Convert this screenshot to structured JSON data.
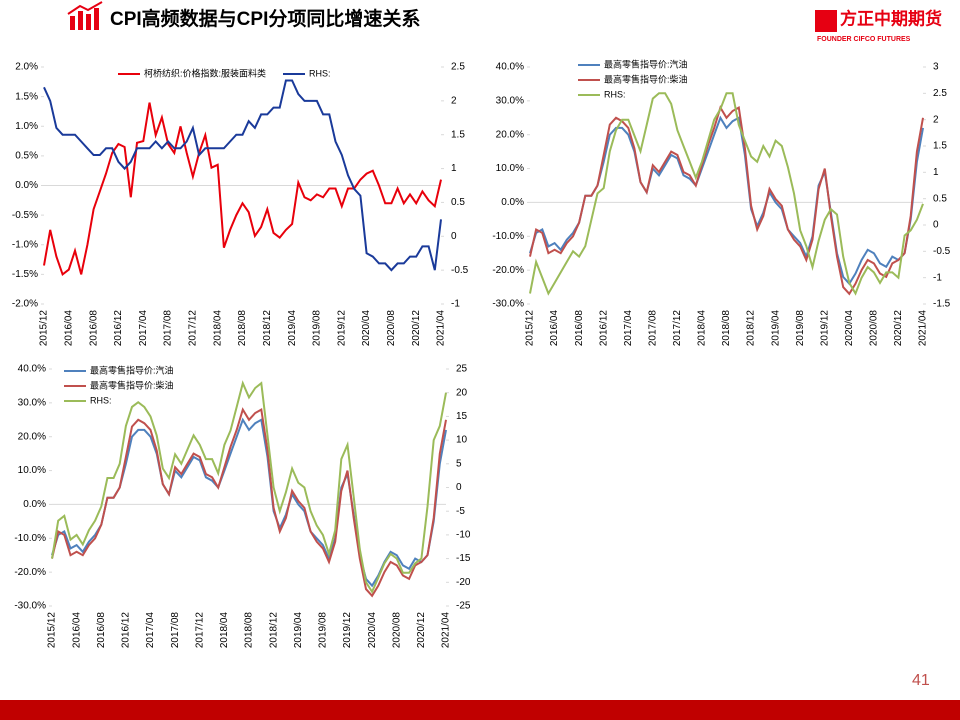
{
  "title": "CPI高频数据与CPI分项同比增速关系",
  "logo": {
    "name": "方正中期期货",
    "english": "FOUNDER CIFCO FUTURES"
  },
  "page_number": "41",
  "chart_data": [
    {
      "type": "line",
      "categories": [
        "2015/12",
        null,
        null,
        null,
        "2016/04",
        null,
        null,
        null,
        "2016/08",
        null,
        null,
        null,
        "2016/12",
        null,
        null,
        null,
        "2017/04",
        null,
        null,
        null,
        "2017/08",
        null,
        null,
        null,
        "2017/12",
        null,
        null,
        null,
        "2018/04",
        null,
        null,
        null,
        "2018/08",
        null,
        null,
        null,
        "2018/12",
        null,
        null,
        null,
        "2019/04",
        null,
        null,
        null,
        "2019/08",
        null,
        null,
        null,
        "2019/12",
        null,
        null,
        null,
        "2020/04",
        null,
        null,
        null,
        "2020/08",
        null,
        null,
        null,
        "2020/12",
        null,
        null,
        null,
        "2021/04"
      ],
      "ylim": [
        -2,
        2
      ],
      "yticks": [
        {
          "value": 2,
          "label": "2.0%"
        },
        {
          "value": 1.5,
          "label": "1.5%"
        },
        {
          "value": 1,
          "label": "1.0%"
        },
        {
          "value": 0.5,
          "label": "0.5%"
        },
        {
          "value": 0,
          "label": "0.0%"
        },
        {
          "value": -0.5,
          "label": "-0.5%"
        },
        {
          "value": -1,
          "label": "-1.0%"
        },
        {
          "value": -1.5,
          "label": "-1.5%"
        },
        {
          "value": -2,
          "label": "-2.0%"
        }
      ],
      "y2lim": [
        -1,
        2.5
      ],
      "y2ticks": [
        2.5,
        2,
        1.5,
        1,
        0.5,
        0,
        -0.5,
        -1
      ],
      "series": [
        {
          "name": "柯桥纺织:价格指数:服装面料类",
          "color": "#e8000b",
          "values": [
            -1.35,
            -0.75,
            -1.2,
            -1.5,
            -1.42,
            -1.1,
            -1.5,
            -1.0,
            -0.4,
            -0.1,
            0.2,
            0.55,
            0.7,
            0.65,
            -0.2,
            0.72,
            0.75,
            1.4,
            0.85,
            1.15,
            0.7,
            0.55,
            1.0,
            0.55,
            0.15,
            0.55,
            0.85,
            0.3,
            0.35,
            -1.05,
            -0.75,
            -0.5,
            -0.3,
            -0.45,
            -0.85,
            -0.7,
            -0.4,
            -0.8,
            -0.88,
            -0.75,
            -0.65,
            0.05,
            -0.2,
            -0.25,
            -0.15,
            -0.2,
            -0.05,
            -0.05,
            -0.35,
            -0.05,
            -0.05,
            0.1,
            0.2,
            0.25,
            0.0,
            -0.3,
            -0.3,
            -0.05,
            -0.3,
            -0.15,
            -0.3,
            -0.1,
            -0.25,
            -0.35,
            0.1
          ]
        },
        {
          "name": "RHS:",
          "color": "#1a3a9a",
          "axis": "y2",
          "values": [
            2.2,
            2.0,
            1.6,
            1.5,
            1.5,
            1.5,
            1.4,
            1.3,
            1.2,
            1.2,
            1.3,
            1.3,
            1.1,
            1.0,
            1.1,
            1.3,
            1.3,
            1.3,
            1.4,
            1.3,
            1.4,
            1.3,
            1.3,
            1.4,
            1.6,
            1.2,
            1.3,
            1.3,
            1.3,
            1.3,
            1.4,
            1.5,
            1.5,
            1.7,
            1.6,
            1.8,
            1.8,
            1.9,
            1.9,
            2.3,
            2.3,
            2.1,
            2.0,
            2.0,
            2.0,
            1.8,
            1.8,
            1.4,
            1.2,
            0.9,
            0.7,
            0.6,
            -0.25,
            -0.3,
            -0.4,
            -0.4,
            -0.5,
            -0.4,
            -0.4,
            -0.3,
            -0.3,
            -0.15,
            -0.15,
            -0.5,
            0.25
          ]
        }
      ]
    },
    {
      "type": "line",
      "categories": [
        "2015/12",
        null,
        null,
        null,
        "2016/04",
        null,
        null,
        null,
        "2016/08",
        null,
        null,
        null,
        "2016/12",
        null,
        null,
        null,
        "2017/04",
        null,
        null,
        null,
        "2017/08",
        null,
        null,
        null,
        "2017/12",
        null,
        null,
        null,
        "2018/04",
        null,
        null,
        null,
        "2018/08",
        null,
        null,
        null,
        "2018/12",
        null,
        null,
        null,
        "2019/04",
        null,
        null,
        null,
        "2019/08",
        null,
        null,
        null,
        "2019/12",
        null,
        null,
        null,
        "2020/04",
        null,
        null,
        null,
        "2020/08",
        null,
        null,
        null,
        "2020/12",
        null,
        null,
        null,
        "2021/04"
      ],
      "ylim": [
        -30,
        40
      ],
      "yticks": [
        {
          "value": 40,
          "label": "40.0%"
        },
        {
          "value": 30,
          "label": "30.0%"
        },
        {
          "value": 20,
          "label": "20.0%"
        },
        {
          "value": 10,
          "label": "10.0%"
        },
        {
          "value": 0,
          "label": "0.0%"
        },
        {
          "value": -10,
          "label": "-10.0%"
        },
        {
          "value": -20,
          "label": "-20.0%"
        },
        {
          "value": -30,
          "label": "-30.0%"
        }
      ],
      "y2lim": [
        -1.5,
        3
      ],
      "y2ticks": [
        3,
        2.5,
        2,
        1.5,
        1,
        0.5,
        0,
        -0.5,
        -1,
        -1.5
      ],
      "series": [
        {
          "name": "最高零售指导价:汽油",
          "color": "#4f81bd",
          "values": [
            -15,
            -9,
            -8,
            -13,
            -12,
            -14,
            -11,
            -9,
            -6,
            2,
            2,
            5,
            12,
            20,
            22,
            22,
            20,
            15,
            6,
            3,
            10,
            8,
            11,
            14,
            13,
            8,
            7,
            5,
            10,
            15,
            20,
            25,
            22,
            24,
            25,
            14,
            -2,
            -7,
            -3,
            3,
            0,
            -2,
            -8,
            -10,
            -12,
            -16,
            -10,
            5,
            9,
            -3,
            -15,
            -22,
            -24,
            -21,
            -17,
            -14,
            -15,
            -18,
            -19,
            -16,
            -17,
            -15,
            -5,
            12,
            22
          ]
        },
        {
          "name": "最高零售指导价:柴油",
          "color": "#c0504d",
          "values": [
            -16,
            -8,
            -9,
            -15,
            -14,
            -15,
            -12,
            -10,
            -6,
            2,
            2,
            5,
            14,
            23,
            25,
            24,
            22,
            16,
            6,
            3,
            11,
            9,
            12,
            15,
            14,
            9,
            8,
            5,
            11,
            17,
            22,
            28,
            25,
            27,
            28,
            16,
            -1,
            -8,
            -4,
            4,
            1,
            -1,
            -8,
            -11,
            -13,
            -17,
            -11,
            4,
            10,
            -4,
            -16,
            -25,
            -27,
            -24,
            -20,
            -17,
            -18,
            -21,
            -22,
            -18,
            -17,
            -15,
            -4,
            15,
            25
          ]
        },
        {
          "name": "RHS:",
          "color": "#9bbb59",
          "axis": "y2",
          "values": [
            -1.3,
            -0.7,
            -1.0,
            -1.3,
            -1.1,
            -0.9,
            -0.7,
            -0.5,
            -0.6,
            -0.4,
            0.1,
            0.6,
            0.7,
            1.4,
            1.8,
            2.0,
            2.0,
            1.7,
            1.4,
            1.9,
            2.4,
            2.5,
            2.5,
            2.3,
            1.8,
            1.5,
            1.2,
            0.9,
            1.2,
            1.6,
            2.0,
            2.2,
            2.5,
            2.5,
            1.9,
            1.6,
            1.3,
            1.2,
            1.5,
            1.3,
            1.6,
            1.5,
            1.1,
            0.6,
            -0.1,
            -0.4,
            -0.8,
            -0.3,
            0.1,
            0.3,
            0.2,
            -0.6,
            -1.1,
            -1.3,
            -1.0,
            -0.8,
            -0.9,
            -1.1,
            -0.9,
            -0.9,
            -1.0,
            -0.2,
            -0.1,
            0.1,
            0.4
          ]
        }
      ]
    },
    {
      "type": "line",
      "categories": [
        "2015/12",
        null,
        null,
        null,
        "2016/04",
        null,
        null,
        null,
        "2016/08",
        null,
        null,
        null,
        "2016/12",
        null,
        null,
        null,
        "2017/04",
        null,
        null,
        null,
        "2017/08",
        null,
        null,
        null,
        "2017/12",
        null,
        null,
        null,
        "2018/04",
        null,
        null,
        null,
        "2018/08",
        null,
        null,
        null,
        "2018/12",
        null,
        null,
        null,
        "2019/04",
        null,
        null,
        null,
        "2019/08",
        null,
        null,
        null,
        "2019/12",
        null,
        null,
        null,
        "2020/04",
        null,
        null,
        null,
        "2020/08",
        null,
        null,
        null,
        "2020/12",
        null,
        null,
        null,
        "2021/04"
      ],
      "ylim": [
        -30,
        40
      ],
      "yticks": [
        {
          "value": 40,
          "label": "40.0%"
        },
        {
          "value": 30,
          "label": "30.0%"
        },
        {
          "value": 20,
          "label": "20.0%"
        },
        {
          "value": 10,
          "label": "10.0%"
        },
        {
          "value": 0,
          "label": "0.0%"
        },
        {
          "value": -10,
          "label": "-10.0%"
        },
        {
          "value": -20,
          "label": "-20.0%"
        },
        {
          "value": -30,
          "label": "-30.0%"
        }
      ],
      "y2lim": [
        -25,
        25
      ],
      "y2ticks": [
        25,
        20,
        15,
        10,
        5,
        0,
        -5,
        -10,
        -15,
        -20,
        -25
      ],
      "series": [
        {
          "name": "最高零售指导价:汽油",
          "color": "#4f81bd",
          "values": [
            -15,
            -9,
            -8,
            -13,
            -12,
            -14,
            -11,
            -9,
            -6,
            2,
            2,
            5,
            12,
            20,
            22,
            22,
            20,
            15,
            6,
            3,
            10,
            8,
            11,
            14,
            13,
            8,
            7,
            5,
            10,
            15,
            20,
            25,
            22,
            24,
            25,
            14,
            -2,
            -7,
            -3,
            3,
            0,
            -2,
            -8,
            -10,
            -12,
            -16,
            -10,
            5,
            9,
            -3,
            -15,
            -22,
            -24,
            -21,
            -17,
            -14,
            -15,
            -18,
            -19,
            -16,
            -17,
            -15,
            -5,
            12,
            22
          ]
        },
        {
          "name": "最高零售指导价:柴油",
          "color": "#c0504d",
          "values": [
            -16,
            -8,
            -9,
            -15,
            -14,
            -15,
            -12,
            -10,
            -6,
            2,
            2,
            5,
            14,
            23,
            25,
            24,
            22,
            16,
            6,
            3,
            11,
            9,
            12,
            15,
            14,
            9,
            8,
            5,
            11,
            17,
            22,
            28,
            25,
            27,
            28,
            16,
            -1,
            -8,
            -4,
            4,
            1,
            -1,
            -8,
            -11,
            -13,
            -17,
            -11,
            4,
            10,
            -4,
            -16,
            -25,
            -27,
            -24,
            -20,
            -17,
            -18,
            -21,
            -22,
            -18,
            -17,
            -15,
            -4,
            15,
            25
          ]
        },
        {
          "name": "RHS:",
          "color": "#9bbb59",
          "axis": "y2",
          "values": [
            -15,
            -7,
            -6,
            -11,
            -10,
            -12,
            -9,
            -7,
            -4,
            2,
            2,
            5,
            13,
            17,
            18,
            17,
            15,
            11,
            4,
            2,
            7,
            5,
            8,
            11,
            9,
            6,
            6,
            3,
            9,
            12,
            17,
            22,
            19,
            21,
            22,
            11,
            0,
            -5,
            -1,
            4,
            1,
            0,
            -5,
            -8,
            -10,
            -14,
            -9,
            6,
            9,
            -2,
            -13,
            -20,
            -22,
            -19,
            -16,
            -14,
            -15,
            -18,
            -18,
            -16,
            -15,
            -4,
            10,
            13,
            20
          ]
        }
      ]
    }
  ]
}
